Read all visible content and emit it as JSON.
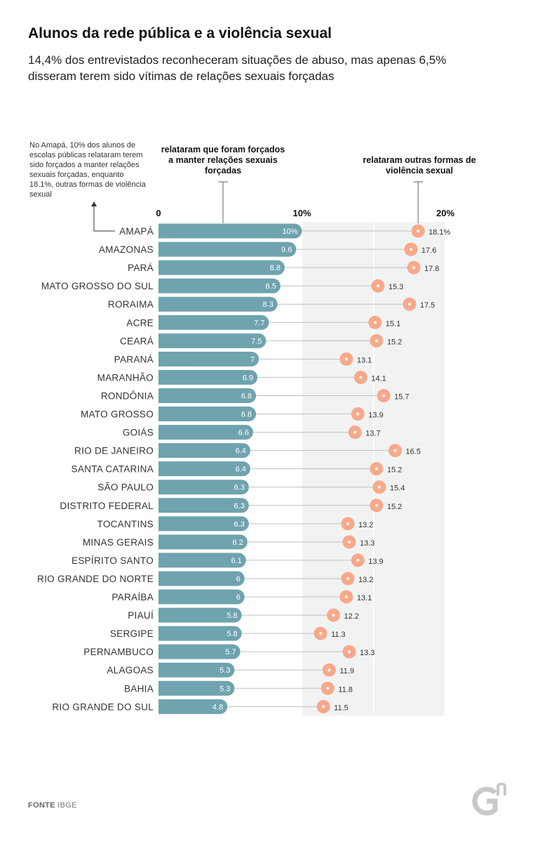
{
  "title": "Alunos da rede pública e a violência sexual",
  "subtitle": "14,4% dos entrevistados reconheceram situações de abuso, mas apenas 6,5% disseram terem sido vítimas de relações sexuais forçadas",
  "annotation": "No Amapá, 10% dos alunos de escolas públicas relataram terem sido forçados a manter relações sexuais forçadas, enquanto 18.1%, outras formas de violência sexual",
  "footer": {
    "label": "FONTE",
    "source": "IBGE"
  },
  "colors": {
    "bar": "#6fa3ae",
    "dot": "#f7a98b",
    "panel": "#f1f3f2",
    "line": "#bfbfbf"
  },
  "chart_data": {
    "type": "bar",
    "orientation": "horizontal",
    "xlim": [
      0,
      20
    ],
    "xticks": [
      "0",
      "10%",
      "20%"
    ],
    "series_labels": {
      "forced": "relataram que foram forçados a manter relações sexuais forçadas",
      "other": "relataram outras formas de violência sexual"
    },
    "rows": [
      {
        "state": "AMAPÁ",
        "forced": 10,
        "forced_label": "10%",
        "other": 18.1,
        "other_label": "18.1%"
      },
      {
        "state": "AMAZONAS",
        "forced": 9.6,
        "forced_label": "9.6",
        "other": 17.6,
        "other_label": "17.6"
      },
      {
        "state": "PARÁ",
        "forced": 8.8,
        "forced_label": "8.8",
        "other": 17.8,
        "other_label": "17.8"
      },
      {
        "state": "MATO GROSSO DO SUL",
        "forced": 8.5,
        "forced_label": "8.5",
        "other": 15.3,
        "other_label": "15.3"
      },
      {
        "state": "RORAIMA",
        "forced": 8.3,
        "forced_label": "8.3",
        "other": 17.5,
        "other_label": "17.5"
      },
      {
        "state": "ACRE",
        "forced": 7.7,
        "forced_label": "7.7",
        "other": 15.1,
        "other_label": "15.1"
      },
      {
        "state": "CEARÁ",
        "forced": 7.5,
        "forced_label": "7.5",
        "other": 15.2,
        "other_label": "15.2"
      },
      {
        "state": "PARANÁ",
        "forced": 7,
        "forced_label": "7",
        "other": 13.1,
        "other_label": "13.1"
      },
      {
        "state": "MARANHÃO",
        "forced": 6.9,
        "forced_label": "6.9",
        "other": 14.1,
        "other_label": "14.1"
      },
      {
        "state": "RONDÔNIA",
        "forced": 6.8,
        "forced_label": "6.8",
        "other": 15.7,
        "other_label": "15.7"
      },
      {
        "state": "MATO GROSSO",
        "forced": 6.8,
        "forced_label": "6.8",
        "other": 13.9,
        "other_label": "13.9"
      },
      {
        "state": "GOIÁS",
        "forced": 6.6,
        "forced_label": "6.6",
        "other": 13.7,
        "other_label": "13.7"
      },
      {
        "state": "RIO DE JANEIRO",
        "forced": 6.4,
        "forced_label": "6.4",
        "other": 16.5,
        "other_label": "16.5"
      },
      {
        "state": "SANTA CATARINA",
        "forced": 6.4,
        "forced_label": "6.4",
        "other": 15.2,
        "other_label": "15.2"
      },
      {
        "state": "SÃO PAULO",
        "forced": 6.3,
        "forced_label": "6.3",
        "other": 15.4,
        "other_label": "15.4"
      },
      {
        "state": "DISTRITO FEDERAL",
        "forced": 6.3,
        "forced_label": "6.3",
        "other": 15.2,
        "other_label": "15.2"
      },
      {
        "state": "TOCANTINS",
        "forced": 6.3,
        "forced_label": "6.3",
        "other": 13.2,
        "other_label": "13.2"
      },
      {
        "state": "MINAS GERAIS",
        "forced": 6.2,
        "forced_label": "6.2",
        "other": 13.3,
        "other_label": "13.3"
      },
      {
        "state": "ESPÍRITO SANTO",
        "forced": 6.1,
        "forced_label": "6.1",
        "other": 13.9,
        "other_label": "13.9"
      },
      {
        "state": "RIO GRANDE DO NORTE",
        "forced": 6,
        "forced_label": "6",
        "other": 13.2,
        "other_label": "13.2"
      },
      {
        "state": "PARAÍBA",
        "forced": 6,
        "forced_label": "6",
        "other": 13.1,
        "other_label": "13.1"
      },
      {
        "state": "PIAUÍ",
        "forced": 5.8,
        "forced_label": "5.8",
        "other": 12.2,
        "other_label": "12.2"
      },
      {
        "state": "SERGIPE",
        "forced": 5.8,
        "forced_label": "5.8",
        "other": 11.3,
        "other_label": "11.3"
      },
      {
        "state": "PERNAMBUCO",
        "forced": 5.7,
        "forced_label": "5.7",
        "other": 13.3,
        "other_label": "13.3"
      },
      {
        "state": "ALAGOAS",
        "forced": 5.3,
        "forced_label": "5.3",
        "other": 11.9,
        "other_label": "11.9"
      },
      {
        "state": "BAHIA",
        "forced": 5.3,
        "forced_label": "5.3",
        "other": 11.8,
        "other_label": "11.8"
      },
      {
        "state": "RIO GRANDE DO SUL",
        "forced": 4.8,
        "forced_label": "4.8",
        "other": 11.5,
        "other_label": "11.5"
      }
    ]
  }
}
